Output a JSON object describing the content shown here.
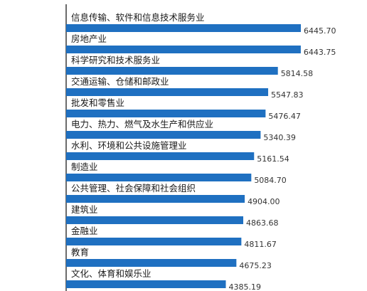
{
  "colors": {
    "bar": "#1f70c1",
    "axis": "#3a3a3a",
    "text": "#1a1a1a"
  },
  "chart_data": {
    "type": "bar",
    "orientation": "horizontal",
    "categories": [
      "信息传输、软件和信息技术服务业",
      "房地产业",
      "科学研究和技术服务业",
      "交通运输、仓储和邮政业",
      "批发和零售业",
      "电力、热力、燃气及水生产和供应业",
      "水利、环境和公共设施管理业",
      "制造业",
      "公共管理、社会保障和社会组织",
      "建筑业",
      "金融业",
      "教育",
      "文化、体育和娱乐业"
    ],
    "values": [
      6445.7,
      6443.75,
      5814.58,
      5547.83,
      5476.47,
      5340.39,
      5161.54,
      5084.7,
      4904.0,
      4863.68,
      4811.67,
      4675.23,
      4385.19
    ],
    "value_labels": [
      "6445.70",
      "6443.75",
      "5814.58",
      "5547.83",
      "5476.47",
      "5340.39",
      "5161.54",
      "5084.70",
      "4904.00",
      "4863.68",
      "4811.67",
      "4675.23",
      "4385.19"
    ],
    "xlim": [
      0,
      6445.7
    ],
    "grid": false,
    "legend": "none"
  }
}
